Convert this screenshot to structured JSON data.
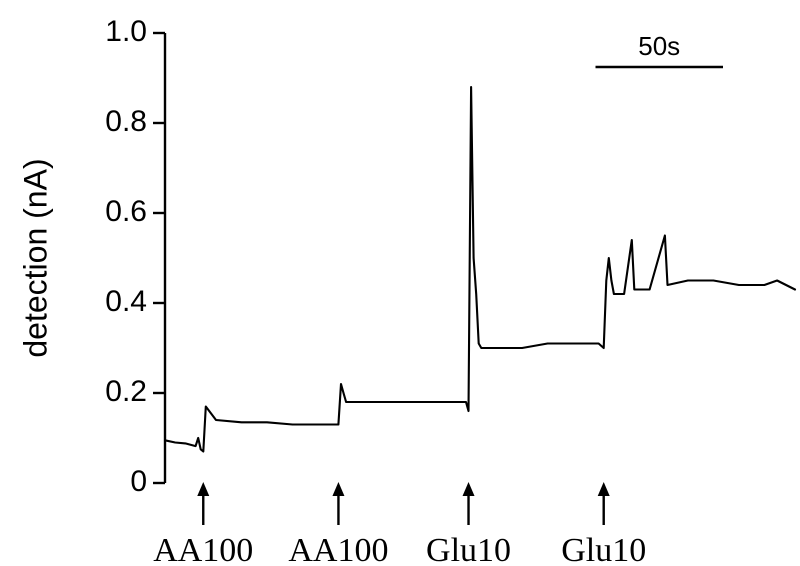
{
  "chart_data": {
    "type": "line",
    "ylabel": "detection (nA)",
    "ylim": [
      0,
      1.0
    ],
    "yticks": [
      {
        "value": 0,
        "label": "0"
      },
      {
        "value": 0.2,
        "label": "0.2"
      },
      {
        "value": 0.4,
        "label": "0.4"
      },
      {
        "value": 0.6,
        "label": "0.6"
      },
      {
        "value": 0.8,
        "label": "0.8"
      },
      {
        "value": 1.0,
        "label": "1.0"
      }
    ],
    "scale_bar": {
      "label": "50s",
      "duration_s": 50
    },
    "x_unit": "s",
    "x_range": [
      0,
      247
    ],
    "events": [
      {
        "label": "AA100",
        "time": 15
      },
      {
        "label": "AA100",
        "time": 68
      },
      {
        "label": "Glu10",
        "time": 119
      },
      {
        "label": "Glu10",
        "time": 172
      }
    ],
    "series": [
      {
        "values": [
          [
            0,
            0.095
          ],
          [
            4,
            0.09
          ],
          [
            8,
            0.088
          ],
          [
            12,
            0.082
          ],
          [
            13,
            0.1
          ],
          [
            14,
            0.075
          ],
          [
            15,
            0.07
          ],
          [
            16,
            0.17
          ],
          [
            20,
            0.14
          ],
          [
            30,
            0.135
          ],
          [
            40,
            0.135
          ],
          [
            50,
            0.13
          ],
          [
            60,
            0.13
          ],
          [
            68,
            0.13
          ],
          [
            69,
            0.22
          ],
          [
            70,
            0.2
          ],
          [
            71,
            0.18
          ],
          [
            80,
            0.18
          ],
          [
            90,
            0.18
          ],
          [
            100,
            0.18
          ],
          [
            110,
            0.18
          ],
          [
            118,
            0.18
          ],
          [
            119,
            0.16
          ],
          [
            120,
            0.88
          ],
          [
            121,
            0.5
          ],
          [
            122,
            0.42
          ],
          [
            123,
            0.31
          ],
          [
            124,
            0.3
          ],
          [
            130,
            0.3
          ],
          [
            140,
            0.3
          ],
          [
            150,
            0.31
          ],
          [
            160,
            0.31
          ],
          [
            170,
            0.31
          ],
          [
            172,
            0.3
          ],
          [
            173,
            0.45
          ],
          [
            174,
            0.5
          ],
          [
            175,
            0.45
          ],
          [
            176,
            0.42
          ],
          [
            180,
            0.42
          ],
          [
            183,
            0.54
          ],
          [
            184,
            0.43
          ],
          [
            190,
            0.43
          ],
          [
            196,
            0.55
          ],
          [
            197,
            0.44
          ],
          [
            205,
            0.45
          ],
          [
            215,
            0.45
          ],
          [
            225,
            0.44
          ],
          [
            235,
            0.44
          ],
          [
            240,
            0.45
          ],
          [
            247,
            0.43
          ]
        ]
      }
    ]
  }
}
